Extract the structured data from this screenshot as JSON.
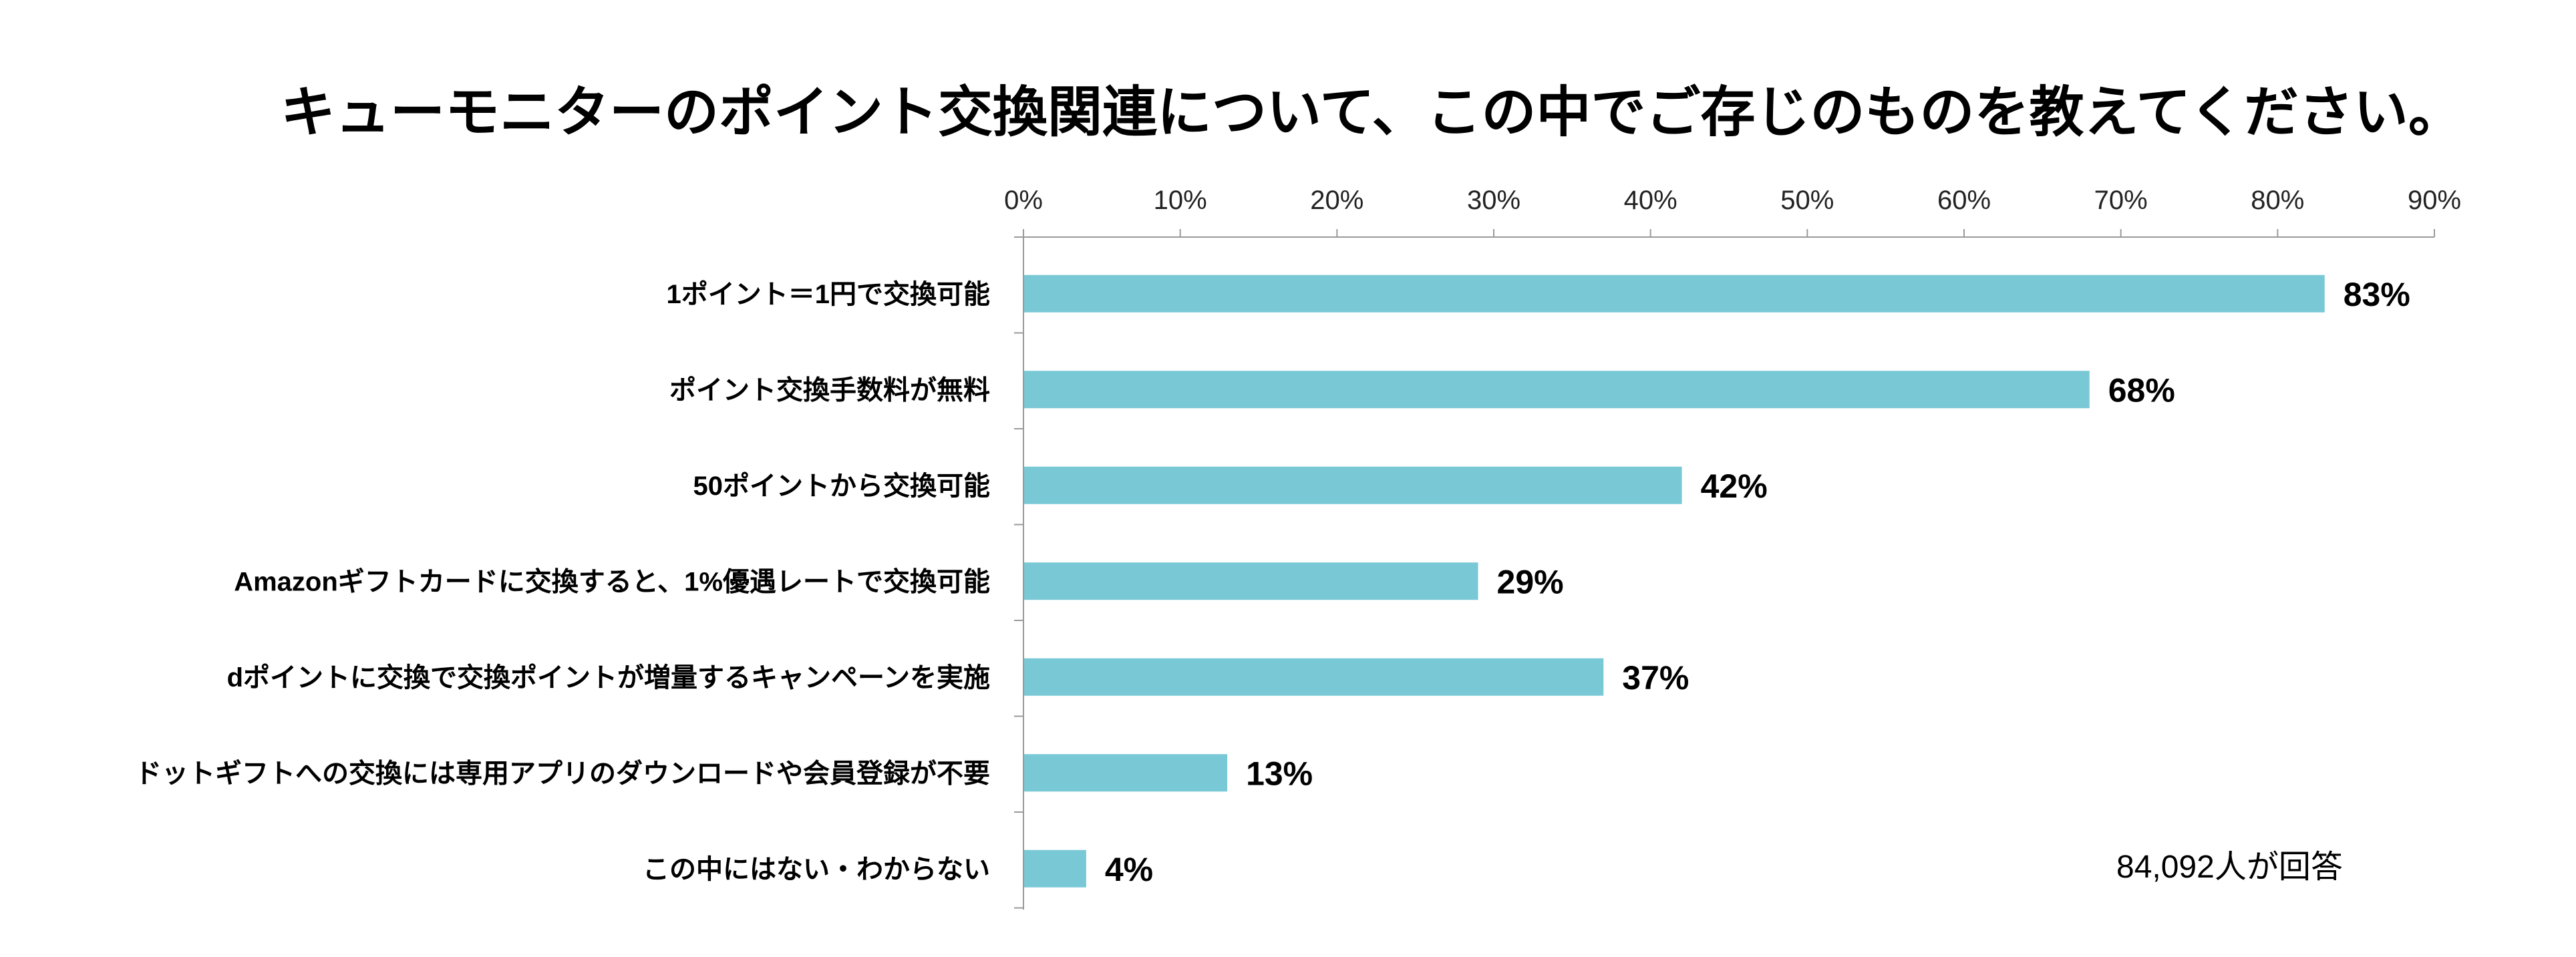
{
  "chart_data": {
    "type": "bar",
    "orientation": "horizontal",
    "title": "キューモニターのポイント交換関連について、この中でご存じのものを教えてください。",
    "categories": [
      "1ポイント＝1円で交換可能",
      "ポイント交換手数料が無料",
      "50ポイントから交換可能",
      "Amazonギフトカードに交換すると、1%優遇レートで交換可能",
      "dポイントに交換で交換ポイントが増量するキャンペーンを実施",
      "ドットギフトへの交換には専用アプリのダウンロードや会員登録が不要",
      "この中にはない・わからない"
    ],
    "values": [
      83,
      68,
      42,
      29,
      37,
      13,
      4
    ],
    "value_labels": [
      "83%",
      "68%",
      "42%",
      "29%",
      "37%",
      "13%",
      "4%"
    ],
    "xlim": [
      0,
      90
    ],
    "tick_labels": [
      "0%",
      "10%",
      "20%",
      "30%",
      "40%",
      "50%",
      "60%",
      "70%",
      "80%",
      "90%"
    ],
    "xlabel": "",
    "ylabel": "",
    "grid": false,
    "axis_position": "top",
    "bar_color": "#79c8d6",
    "note": "84,092人が回答"
  }
}
